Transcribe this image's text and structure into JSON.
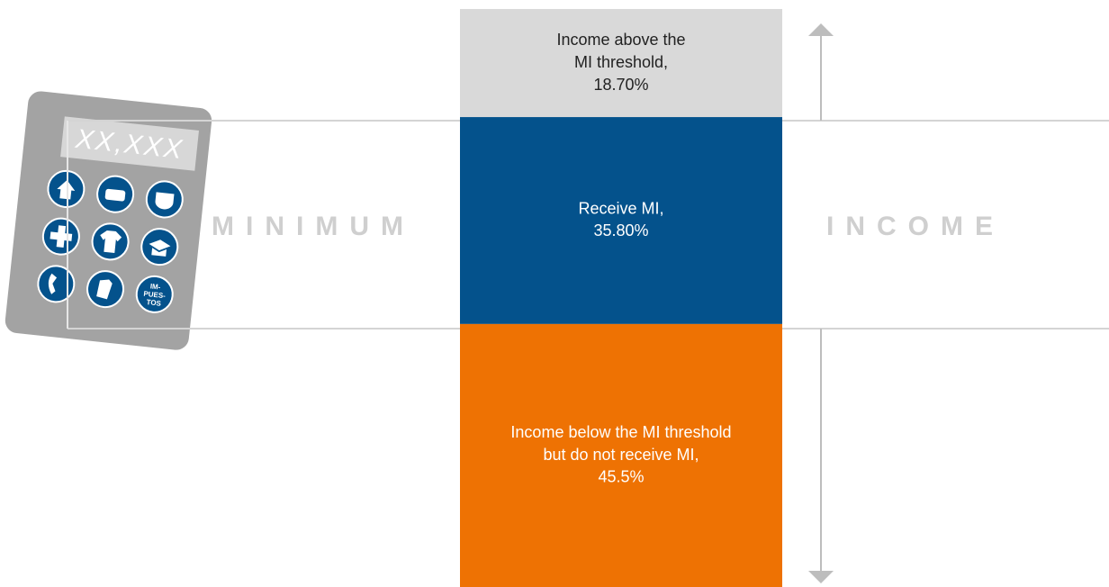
{
  "chart_data": {
    "type": "stacked-column",
    "categories": [
      "Income above the\nMI threshold,",
      "Receive MI,",
      "Income below the MI threshold\nbut do not receive MI,"
    ],
    "values": [
      18.7,
      35.8,
      45.5
    ],
    "value_labels": [
      "18.70%",
      "35.80%",
      "45.5%"
    ],
    "colors": [
      "#d9d9d9",
      "#04528c",
      "#ee7203"
    ],
    "label_colors": [
      "#222222",
      "#ffffff",
      "#ffffff"
    ],
    "annotations": [
      "MINIMUM",
      "INCOME"
    ],
    "icon_texts": {
      "display": "XX,XXX",
      "key": [
        "IM-",
        "PUES-",
        "TOS"
      ]
    }
  }
}
